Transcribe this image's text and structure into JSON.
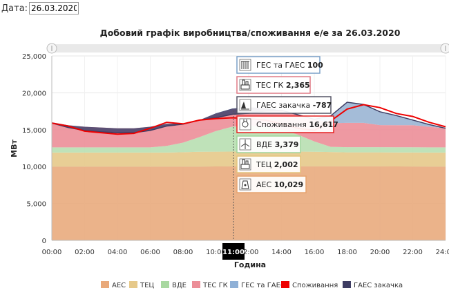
{
  "date_label": "Дата:",
  "date_value": "26.03.2020",
  "chart_data": {
    "type": "area",
    "title": "Добовий графік виробництва/споживання е/е за 26.03.2020",
    "xlabel": "Година",
    "ylabel": "МВт",
    "ylim": [
      0,
      25000
    ],
    "y_ticks": [
      "0",
      "5,000",
      "10,000",
      "15,000",
      "20,000",
      "25,000"
    ],
    "x_ticks": [
      "00:00",
      "02:00",
      "04:00",
      "06:00",
      "08:00",
      "10:00",
      "12:00",
      "14:00",
      "16:00",
      "18:00",
      "20:00",
      "22:00",
      "24:00"
    ],
    "x": [
      0,
      1,
      2,
      3,
      4,
      5,
      6,
      7,
      8,
      9,
      10,
      11,
      12,
      13,
      14,
      15,
      16,
      17,
      18,
      19,
      20,
      21,
      22,
      23,
      24
    ],
    "stacked_series": [
      {
        "name": "АЕС",
        "color": "#e9ab7d",
        "values": [
          10000,
          10000,
          10000,
          10000,
          10000,
          10000,
          10000,
          10000,
          10000,
          10000,
          10020,
          10029,
          10030,
          10030,
          10030,
          10030,
          10030,
          10030,
          10030,
          10030,
          10030,
          10020,
          10010,
          10000,
          10000
        ]
      },
      {
        "name": "ТЕЦ",
        "color": "#e6c98a",
        "values": [
          1900,
          1900,
          1900,
          1900,
          1900,
          1900,
          1900,
          1900,
          1950,
          2000,
          2000,
          2002,
          2000,
          2000,
          2000,
          2000,
          1980,
          1950,
          1900,
          1900,
          1900,
          1900,
          1900,
          1900,
          1900
        ]
      },
      {
        "name": "ВДЕ",
        "color": "#b8dfb1",
        "values": [
          700,
          700,
          700,
          700,
          700,
          700,
          700,
          900,
          1300,
          2000,
          2800,
          3379,
          3500,
          3400,
          3000,
          2300,
          1400,
          700,
          700,
          700,
          700,
          700,
          700,
          700,
          700
        ]
      },
      {
        "name": "ТЕС ГК",
        "color": "#ec8e98",
        "values": [
          3400,
          3000,
          2800,
          2700,
          2600,
          2600,
          2800,
          3000,
          2600,
          2300,
          2300,
          2365,
          2400,
          2400,
          2500,
          2700,
          3000,
          3200,
          3300,
          3300,
          3000,
          3000,
          3000,
          2800,
          2600
        ]
      },
      {
        "name": "ГЕС та ГАЕС",
        "color": "#9ab5d4",
        "values": [
          0,
          0,
          0,
          0,
          0,
          0,
          0,
          0,
          0,
          0,
          100,
          100,
          100,
          100,
          100,
          0,
          0,
          1000,
          2800,
          2500,
          1800,
          1300,
          700,
          300,
          0
        ]
      },
      {
        "name": "ГАЕС закачка",
        "color": "#4a4870",
        "values": [
          -100,
          -300,
          -500,
          -600,
          -600,
          -600,
          -500,
          -300,
          -100,
          0,
          -600,
          -787,
          -800,
          -400,
          0,
          0,
          0,
          0,
          0,
          0,
          0,
          0,
          0,
          0,
          0
        ]
      }
    ],
    "consumption_series": {
      "name": "Споживання",
      "color": "#ee0000",
      "values": [
        15900,
        15500,
        14800,
        14600,
        14400,
        14500,
        15200,
        16000,
        15800,
        16300,
        16500,
        16617,
        16500,
        16300,
        15800,
        15200,
        14900,
        16200,
        17800,
        18400,
        18000,
        17200,
        16800,
        16000,
        15400
      ]
    },
    "tooltip_hour": "11:00",
    "tooltip_items": [
      {
        "name": "ГЕС та ГАЕС",
        "value": "100",
        "color": "#7aa0c8",
        "icon": "hydro-icon"
      },
      {
        "name": "ТЕС ГК",
        "value": "2,365",
        "color": "#e07a86",
        "icon": "thermal-plant-icon"
      },
      {
        "name": "ГАЕС закачка",
        "value": "-787",
        "color": "#555566",
        "icon": "pumped-storage-icon"
      },
      {
        "name": "Споживання",
        "value": "16,617",
        "color": "#e62020",
        "icon": "plug-icon"
      },
      {
        "name": "ВДЕ",
        "value": "3,379",
        "color": "#9fd49a",
        "icon": "wind-turbine-icon"
      },
      {
        "name": "ТЕЦ",
        "value": "2,002",
        "color": "#e3c37a",
        "icon": "chp-plant-icon"
      },
      {
        "name": "АЕС",
        "value": "10,029",
        "color": "#e6a36e",
        "icon": "nuclear-icon"
      }
    ],
    "legend": [
      {
        "name": "АЕС",
        "color": "#e9a97a"
      },
      {
        "name": "ТЕЦ",
        "color": "#e6c98a"
      },
      {
        "name": "ВДЕ",
        "color": "#a8d8a0"
      },
      {
        "name": "ТЕС ГК",
        "color": "#ec8e98"
      },
      {
        "name": "ГЕС та ГАЕС",
        "color": "#8fb0d6"
      },
      {
        "name": "Споживання",
        "color": "#ee0000"
      },
      {
        "name": "ГАЕС закачка",
        "color": "#3e3d63"
      }
    ]
  }
}
